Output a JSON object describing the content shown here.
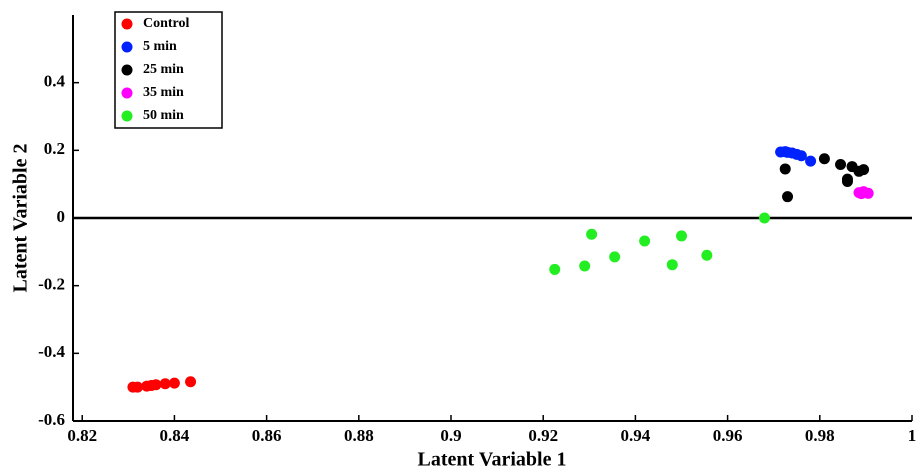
{
  "chart_data": {
    "type": "scatter",
    "xlabel": "Latent Variable 1",
    "ylabel": "Latent Variable 2",
    "xlim": [
      0.818,
      1
    ],
    "ylim": [
      -0.6,
      0.6
    ],
    "xticks": [
      0.82,
      0.84,
      0.86,
      0.88,
      0.9,
      0.92,
      0.94,
      0.96,
      0.98,
      1
    ],
    "yticks": [
      -0.6,
      -0.4,
      -0.2,
      0,
      0.2,
      0.4
    ],
    "legend": "upper left",
    "series": [
      {
        "name": "Control",
        "color": "#ff0000",
        "x": [
          0.831,
          0.832,
          0.834,
          0.835,
          0.836,
          0.838,
          0.84,
          0.8435
        ],
        "y": [
          -0.5,
          -0.5,
          -0.497,
          -0.495,
          -0.493,
          -0.49,
          -0.488,
          -0.484
        ]
      },
      {
        "name": "5 min",
        "color": "#0022ff",
        "x": [
          0.9715,
          0.9725,
          0.973,
          0.974,
          0.975,
          0.976,
          0.978
        ],
        "y": [
          0.195,
          0.196,
          0.194,
          0.192,
          0.188,
          0.184,
          0.168
        ]
      },
      {
        "name": "25 min",
        "color": "#000000",
        "x": [
          0.9725,
          0.973,
          0.981,
          0.9845,
          0.986,
          0.986,
          0.987,
          0.9885,
          0.9895
        ],
        "y": [
          0.145,
          0.063,
          0.175,
          0.158,
          0.115,
          0.108,
          0.152,
          0.138,
          0.143
        ]
      },
      {
        "name": "35 min",
        "color": "#ff00ff",
        "x": [
          0.9885,
          0.989,
          0.9895,
          0.9905
        ],
        "y": [
          0.075,
          0.072,
          0.078,
          0.073
        ]
      },
      {
        "name": "50 min",
        "color": "#22ee22",
        "x": [
          0.9225,
          0.929,
          0.9305,
          0.9355,
          0.942,
          0.948,
          0.95,
          0.9555,
          0.968
        ],
        "y": [
          -0.152,
          -0.142,
          -0.048,
          -0.115,
          -0.068,
          -0.138,
          -0.053,
          -0.11,
          0.0
        ]
      }
    ]
  }
}
